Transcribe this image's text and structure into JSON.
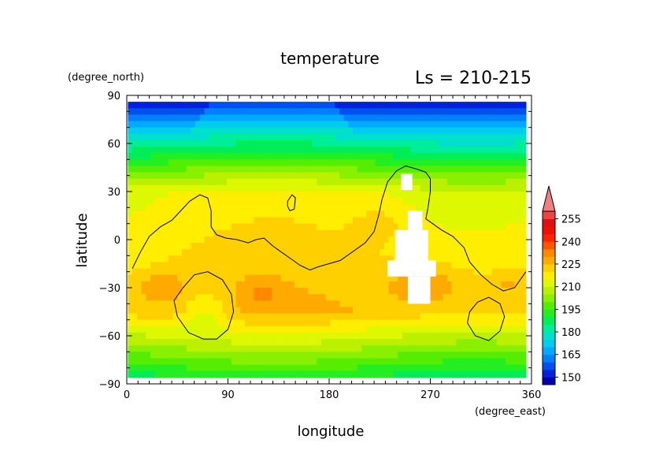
{
  "chart_data": {
    "type": "heatmap",
    "title": "temperature",
    "subtitle": "Ls = 210-215",
    "xlabel": "longitude",
    "ylabel": "latitude",
    "xunit": "(degree_east)",
    "yunit": "(degree_north)",
    "xlim": [
      0,
      360
    ],
    "ylim": [
      -90,
      90
    ],
    "xticks": [
      0,
      90,
      180,
      270,
      360
    ],
    "yticks": [
      90,
      60,
      30,
      0,
      -30,
      -60,
      -90
    ],
    "grid": false,
    "colorbar": {
      "ticks": [
        255,
        240,
        225,
        210,
        195,
        180,
        165,
        150
      ],
      "levels": [
        145,
        150,
        155,
        160,
        165,
        170,
        175,
        180,
        185,
        190,
        195,
        200,
        205,
        210,
        215,
        220,
        225,
        230,
        235,
        240,
        245,
        250,
        255,
        260
      ],
      "colors": [
        "#0000b0",
        "#0022dd",
        "#0050f0",
        "#0080ff",
        "#00aaff",
        "#00ccee",
        "#00e0cc",
        "#00ee99",
        "#00ee55",
        "#22ee22",
        "#55ee00",
        "#88f000",
        "#bbf000",
        "#ddf800",
        "#ffee00",
        "#ffd000",
        "#ffaa00",
        "#ff8800",
        "#ff5500",
        "#ff2200",
        "#ee1100",
        "#dd1111",
        "#ee4444"
      ],
      "extend_color": "#f08080",
      "placement": "right"
    }
  }
}
